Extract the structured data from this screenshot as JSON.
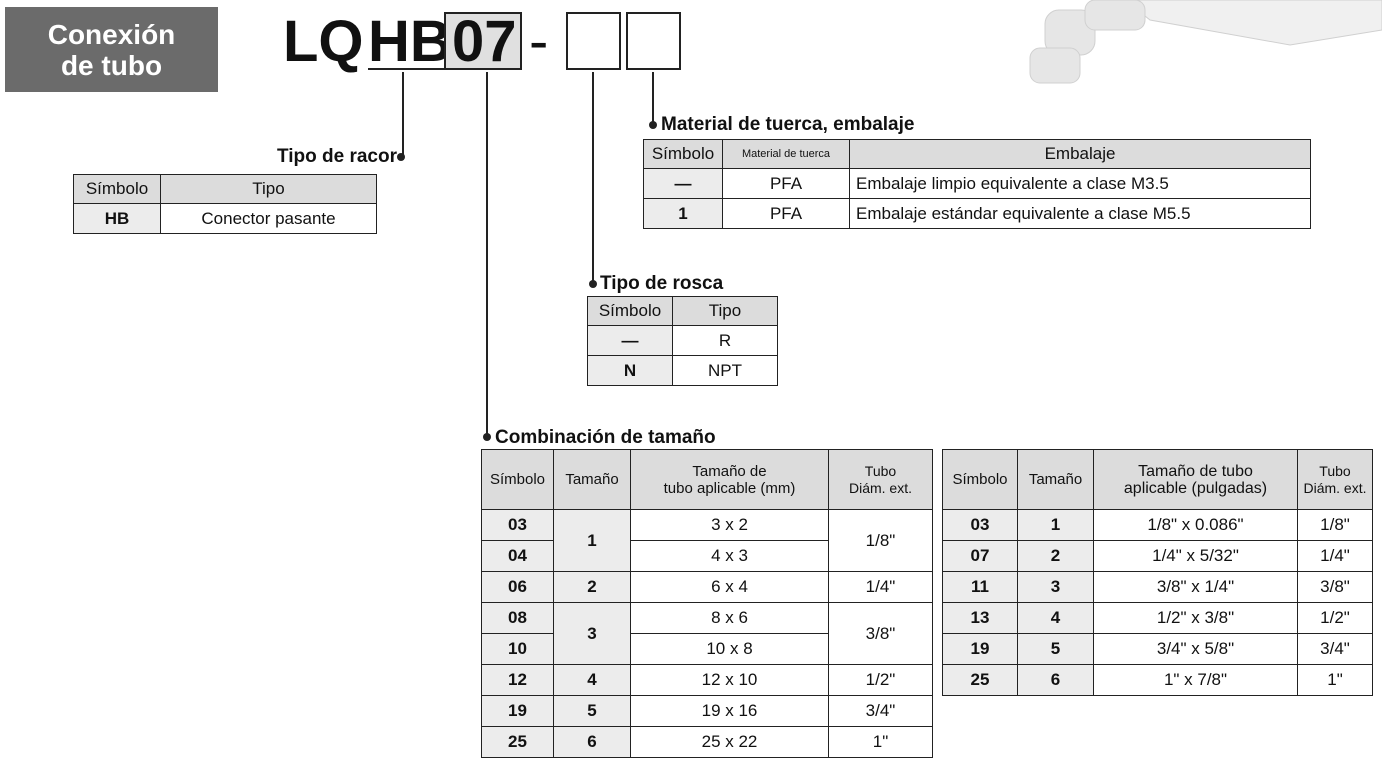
{
  "badge": {
    "lines": [
      "Conexión",
      "de tubo"
    ]
  },
  "code": {
    "prefix": "LQ",
    "type": "HB",
    "size": "07",
    "dash": "-"
  },
  "fitting_type": {
    "title": "Tipo de racor",
    "header": [
      "Símbolo",
      "Tipo"
    ],
    "rows": [
      [
        "HB",
        "Conector pasante"
      ]
    ]
  },
  "nut_material": {
    "title": "Material de tuerca, embalaje",
    "header": [
      "Símbolo",
      "Material de tuerca",
      "Embalaje"
    ],
    "rows": [
      [
        "—",
        "PFA",
        "Embalaje limpio equivalente a clase M3.5"
      ],
      [
        "1",
        "PFA",
        "Embalaje estándar equivalente a clase M5.5"
      ]
    ]
  },
  "thread": {
    "title": "Tipo de rosca",
    "header": [
      "Símbolo",
      "Tipo"
    ],
    "rows": [
      [
        "—",
        "R"
      ],
      [
        "N",
        "NPT"
      ]
    ]
  },
  "size": {
    "title": "Combinación de tamaño",
    "metric": {
      "header": [
        "Símbolo",
        "Tamaño",
        [
          "Tamaño de",
          "tubo aplicable (mm)"
        ],
        [
          "Tubo",
          "Diám. ext."
        ]
      ],
      "rows": [
        [
          "03",
          "1",
          "3 x 2",
          "1/8\""
        ],
        [
          "04",
          "4 x 3"
        ],
        [
          "06",
          "2",
          "6 x 4",
          "1/4\""
        ],
        [
          "08",
          "3",
          "8 x 6",
          "3/8\""
        ],
        [
          "10",
          "10 x 8"
        ],
        [
          "12",
          "4",
          "12 x 10",
          "1/2\""
        ],
        [
          "19",
          "5",
          "19 x 16",
          "3/4\""
        ],
        [
          "25",
          "6",
          "25 x 22",
          "1\""
        ]
      ]
    },
    "inch": {
      "header": [
        "Símbolo",
        "Tamaño",
        [
          "Tamaño de tubo",
          "aplicable (pulgadas)"
        ],
        [
          "Tubo",
          "Diám. ext."
        ]
      ],
      "rows": [
        [
          "03",
          "1",
          "1/8\" x 0.086\"",
          "1/8\""
        ],
        [
          "07",
          "2",
          "1/4\" x 5/32\"",
          "1/4\""
        ],
        [
          "11",
          "3",
          "3/8\" x 1/4\"",
          "3/8\""
        ],
        [
          "13",
          "4",
          "1/2\" x 3/8\"",
          "1/2\""
        ],
        [
          "19",
          "5",
          "3/4\" x 5/8\"",
          "3/4\""
        ],
        [
          "25",
          "6",
          "1\" x 7/8\"",
          "1\""
        ]
      ]
    }
  }
}
